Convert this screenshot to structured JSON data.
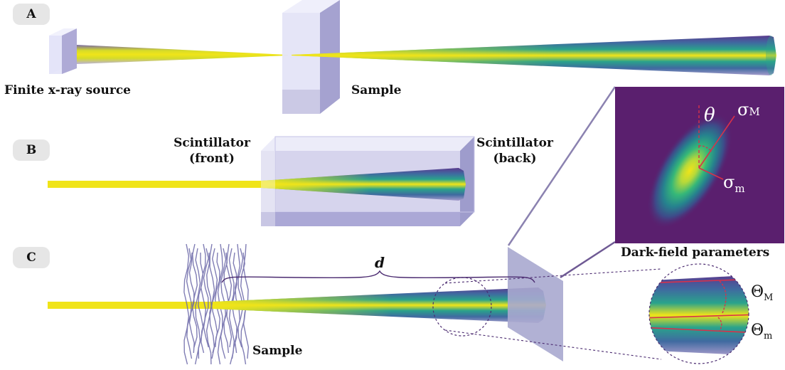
{
  "panels": {
    "a": {
      "badge": "A",
      "source_label": "Finite x-ray source",
      "sample_label": "Sample"
    },
    "b": {
      "badge": "B",
      "front_label_1": "Scintillator",
      "front_label_2": "(front)",
      "back_label_1": "Scintillator",
      "back_label_2": "(back)"
    },
    "c": {
      "badge": "C",
      "distance_label": "d",
      "sample_label": "Sample",
      "dark_field_label": "Dark-field parameters"
    }
  },
  "inset_params": {
    "theta": "θ",
    "sigma_major": "σ",
    "sigma_major_sub": "M",
    "sigma_minor": "σ",
    "sigma_minor_sub": "m"
  },
  "zoom_params": {
    "theta_major": "Θ",
    "theta_major_sub": "M",
    "theta_minor": "Θ",
    "theta_minor_sub": "m"
  },
  "colors": {
    "beam_yellow": "#f0e419",
    "beam_teal": "#2aa38b",
    "beam_purple": "#55307f",
    "slab_face": "#e3e3f8",
    "slab_side": "#a8a6d2",
    "inset_bg": "#5a1f6e",
    "frame_line": "#6f5a94",
    "red_line": "#d8314a",
    "sample_fiber": "#6a67a8"
  }
}
